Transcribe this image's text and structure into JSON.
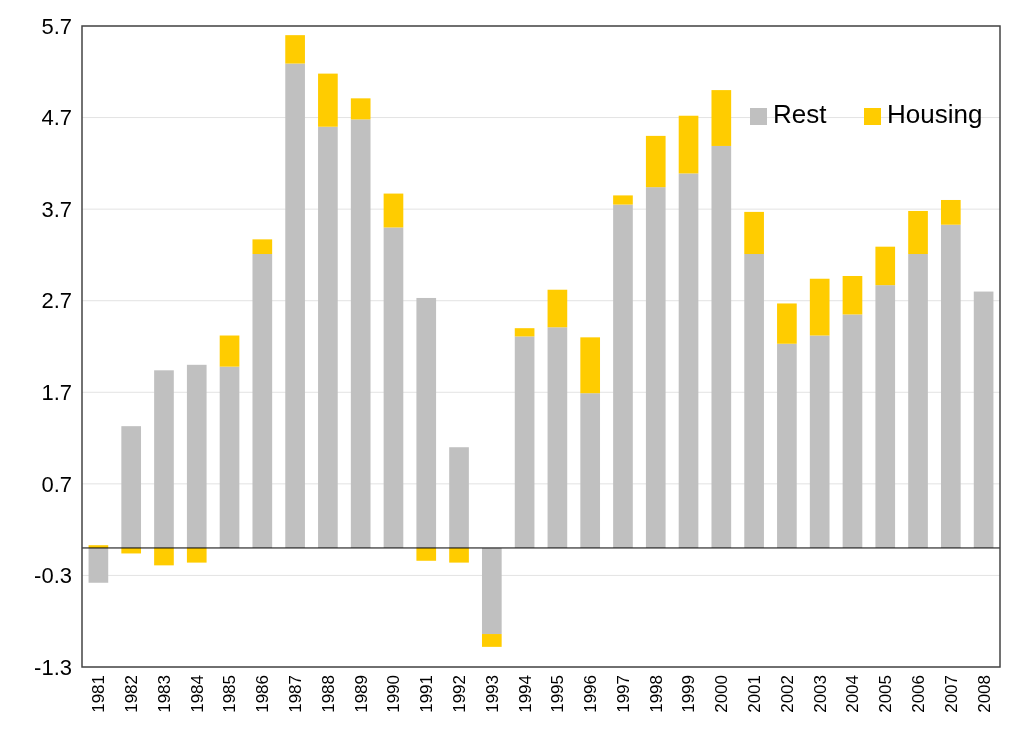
{
  "chart_data": {
    "type": "bar",
    "stacked": true,
    "categories": [
      "1981",
      "1982",
      "1983",
      "1984",
      "1985",
      "1986",
      "1987",
      "1988",
      "1989",
      "1990",
      "1991",
      "1992",
      "1993",
      "1994",
      "1995",
      "1996",
      "1997",
      "1998",
      "1999",
      "2000",
      "2001",
      "2002",
      "2003",
      "2004",
      "2005",
      "2006",
      "2007",
      "2008"
    ],
    "series": [
      {
        "name": "Rest",
        "color": "#c0c0c0",
        "values": [
          -0.38,
          1.33,
          1.94,
          2.0,
          1.98,
          3.21,
          5.29,
          4.6,
          4.68,
          3.5,
          2.73,
          1.1,
          -0.94,
          2.31,
          2.41,
          1.69,
          3.75,
          3.94,
          4.09,
          4.39,
          3.21,
          2.23,
          2.32,
          2.55,
          2.87,
          3.21,
          3.53,
          2.8
        ]
      },
      {
        "name": "Housing",
        "color": "#ffcc00",
        "values": [
          0.03,
          -0.06,
          -0.19,
          -0.16,
          0.34,
          0.16,
          0.31,
          0.58,
          0.23,
          0.37,
          -0.14,
          -0.16,
          -0.14,
          0.09,
          0.41,
          0.61,
          0.1,
          0.56,
          0.63,
          0.61,
          0.46,
          0.44,
          0.62,
          0.42,
          0.42,
          0.47,
          0.27,
          null
        ]
      }
    ],
    "ylim": [
      -1.3,
      5.7
    ],
    "yticks": [
      -1.3,
      -0.3,
      0.7,
      1.7,
      2.7,
      3.7,
      4.7,
      5.7
    ],
    "grid": "y",
    "legend": "top right"
  }
}
